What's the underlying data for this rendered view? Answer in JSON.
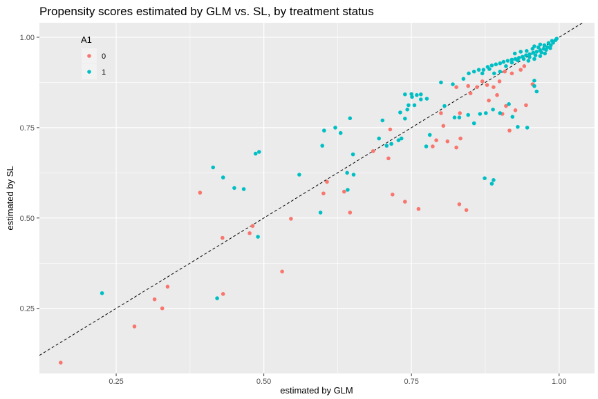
{
  "chart_data": {
    "type": "scatter",
    "title": "Propensity scores estimated by GLM vs. SL, by treatment status",
    "xlabel": "estimated by GLM",
    "ylabel": "estimated by SL",
    "xlim": [
      0.12,
      1.06
    ],
    "ylim": [
      0.07,
      1.04
    ],
    "x_ticks": [
      0.25,
      0.5,
      0.75,
      1.0
    ],
    "x_tick_labels": [
      "0.25",
      "0.50",
      "0.75",
      "1.00"
    ],
    "y_ticks": [
      0.25,
      0.5,
      0.75,
      1.0
    ],
    "y_tick_labels": [
      "0.25",
      "0.50",
      "0.75",
      "1.00"
    ],
    "grid": true,
    "reference_line": {
      "type": "identity",
      "slope": 1,
      "intercept": 0,
      "style": "dashed",
      "color": "#000000"
    },
    "legend": {
      "title": "A1",
      "placement": "top-left",
      "entries": [
        {
          "label": "0",
          "color": "#F8766D"
        },
        {
          "label": "1",
          "color": "#00BFC4"
        }
      ]
    },
    "series": [
      {
        "name": "0",
        "color": "#F8766D",
        "points": [
          [
            0.156,
            0.1
          ],
          [
            0.281,
            0.2
          ],
          [
            0.328,
            0.25
          ],
          [
            0.315,
            0.275
          ],
          [
            0.337,
            0.31
          ],
          [
            0.431,
            0.29
          ],
          [
            0.43,
            0.445
          ],
          [
            0.476,
            0.458
          ],
          [
            0.481,
            0.478
          ],
          [
            0.392,
            0.57
          ],
          [
            0.531,
            0.352
          ],
          [
            0.546,
            0.498
          ],
          [
            0.601,
            0.568
          ],
          [
            0.607,
            0.6
          ],
          [
            0.636,
            0.573
          ],
          [
            0.646,
            0.515
          ],
          [
            0.718,
            0.565
          ],
          [
            0.739,
            0.545
          ],
          [
            0.762,
            0.525
          ],
          [
            0.831,
            0.538
          ],
          [
            0.843,
            0.522
          ],
          [
            0.711,
            0.665
          ],
          [
            0.685,
            0.685
          ],
          [
            0.714,
            0.745
          ],
          [
            0.792,
            0.715
          ],
          [
            0.811,
            0.712
          ],
          [
            0.826,
            0.695
          ],
          [
            0.786,
            0.698
          ],
          [
            0.833,
            0.72
          ],
          [
            0.804,
            0.755
          ],
          [
            0.832,
            0.79
          ],
          [
            0.8,
            0.79
          ],
          [
            0.916,
            0.742
          ],
          [
            0.904,
            0.788
          ],
          [
            0.895,
            0.84
          ],
          [
            0.881,
            0.825
          ],
          [
            0.91,
            0.81
          ],
          [
            0.926,
            0.798
          ],
          [
            0.944,
            0.812
          ],
          [
            0.955,
            0.87
          ],
          [
            0.85,
            0.845
          ],
          [
            0.861,
            0.862
          ],
          [
            0.87,
            0.878
          ],
          [
            0.878,
            0.868
          ],
          [
            0.889,
            0.862
          ],
          [
            0.899,
            0.878
          ],
          [
            0.908,
            0.905
          ],
          [
            0.92,
            0.9
          ],
          [
            0.935,
            0.91
          ],
          [
            0.941,
            0.92
          ],
          [
            0.826,
            0.862
          ],
          [
            0.846,
            0.865
          ]
        ]
      },
      {
        "name": "1",
        "color": "#00BFC4",
        "points": [
          [
            0.226,
            0.292
          ],
          [
            0.421,
            0.278
          ],
          [
            0.414,
            0.64
          ],
          [
            0.431,
            0.612
          ],
          [
            0.45,
            0.583
          ],
          [
            0.466,
            0.58
          ],
          [
            0.486,
            0.678
          ],
          [
            0.492,
            0.683
          ],
          [
            0.49,
            0.448
          ],
          [
            0.56,
            0.62
          ],
          [
            0.596,
            0.515
          ],
          [
            0.599,
            0.7
          ],
          [
            0.602,
            0.742
          ],
          [
            0.621,
            0.75
          ],
          [
            0.63,
            0.735
          ],
          [
            0.641,
            0.625
          ],
          [
            0.642,
            0.578
          ],
          [
            0.652,
            0.62
          ],
          [
            0.651,
            0.676
          ],
          [
            0.646,
            0.776
          ],
          [
            0.695,
            0.72
          ],
          [
            0.701,
            0.77
          ],
          [
            0.716,
            0.705
          ],
          [
            0.708,
            0.7
          ],
          [
            0.728,
            0.715
          ],
          [
            0.733,
            0.72
          ],
          [
            0.731,
            0.792
          ],
          [
            0.739,
            0.775
          ],
          [
            0.743,
            0.8
          ],
          [
            0.745,
            0.812
          ],
          [
            0.751,
            0.835
          ],
          [
            0.755,
            0.812
          ],
          [
            0.759,
            0.84
          ],
          [
            0.766,
            0.828
          ],
          [
            0.776,
            0.83
          ],
          [
            0.739,
            0.842
          ],
          [
            0.75,
            0.843
          ],
          [
            0.766,
            0.842
          ],
          [
            0.775,
            0.698
          ],
          [
            0.781,
            0.73
          ],
          [
            0.806,
            0.81
          ],
          [
            0.823,
            0.778
          ],
          [
            0.831,
            0.778
          ],
          [
            0.846,
            0.785
          ],
          [
            0.856,
            0.762
          ],
          [
            0.866,
            0.788
          ],
          [
            0.876,
            0.79
          ],
          [
            0.874,
            0.61
          ],
          [
            0.886,
            0.595
          ],
          [
            0.889,
            0.605
          ],
          [
            0.888,
            0.8
          ],
          [
            0.9,
            0.79
          ],
          [
            0.915,
            0.815
          ],
          [
            0.921,
            0.78
          ],
          [
            0.93,
            0.752
          ],
          [
            0.946,
            0.75
          ],
          [
            0.962,
            0.85
          ],
          [
            0.958,
            0.865
          ],
          [
            0.958,
            0.88
          ],
          [
            0.8,
            0.875
          ],
          [
            0.82,
            0.87
          ],
          [
            0.838,
            0.885
          ],
          [
            0.847,
            0.9
          ],
          [
            0.856,
            0.905
          ],
          [
            0.864,
            0.91
          ],
          [
            0.872,
            0.91
          ],
          [
            0.879,
            0.918
          ],
          [
            0.886,
            0.922
          ],
          [
            0.893,
            0.925
          ],
          [
            0.9,
            0.928
          ],
          [
            0.906,
            0.932
          ],
          [
            0.913,
            0.935
          ],
          [
            0.92,
            0.938
          ],
          [
            0.926,
            0.94
          ],
          [
            0.932,
            0.943
          ],
          [
            0.938,
            0.946
          ],
          [
            0.944,
            0.95
          ],
          [
            0.95,
            0.953
          ],
          [
            0.956,
            0.957
          ],
          [
            0.962,
            0.96
          ],
          [
            0.968,
            0.964
          ],
          [
            0.974,
            0.968
          ],
          [
            0.98,
            0.973
          ],
          [
            0.986,
            0.978
          ],
          [
            0.99,
            0.985
          ],
          [
            0.994,
            0.992
          ],
          [
            0.91,
            0.92
          ],
          [
            0.92,
            0.93
          ],
          [
            0.93,
            0.936
          ],
          [
            0.94,
            0.94
          ],
          [
            0.95,
            0.945
          ],
          [
            0.96,
            0.95
          ],
          [
            0.97,
            0.958
          ],
          [
            0.978,
            0.965
          ],
          [
            0.985,
            0.97
          ],
          [
            0.925,
            0.955
          ],
          [
            0.935,
            0.96
          ],
          [
            0.945,
            0.962
          ],
          [
            0.955,
            0.968
          ],
          [
            0.965,
            0.972
          ],
          [
            0.975,
            0.978
          ],
          [
            0.982,
            0.984
          ],
          [
            0.948,
            0.935
          ],
          [
            0.958,
            0.94
          ],
          [
            0.968,
            0.948
          ],
          [
            0.976,
            0.955
          ],
          [
            0.89,
            0.9
          ],
          [
            0.9,
            0.905
          ],
          [
            0.87,
            0.9
          ],
          [
            0.882,
            0.912
          ],
          [
            0.958,
            0.975
          ],
          [
            0.968,
            0.98
          ],
          [
            0.988,
            0.99
          ],
          [
            0.996,
            0.996
          ]
        ]
      }
    ]
  }
}
